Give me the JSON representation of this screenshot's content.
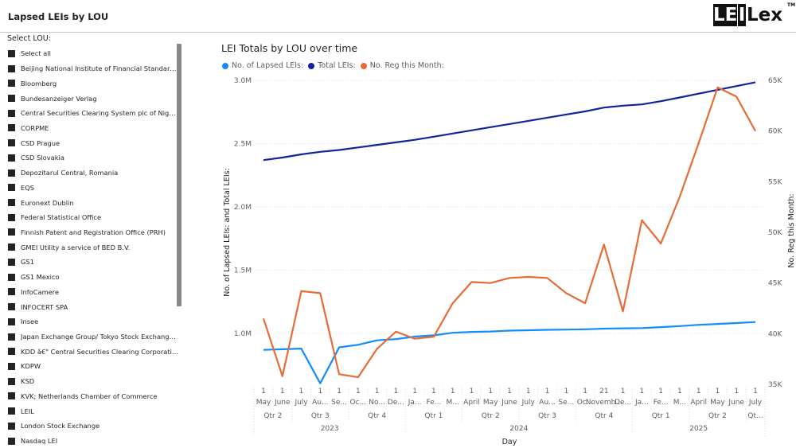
{
  "header": {
    "title": "Lapsed LEIs by LOU",
    "logo_left": "LE",
    "logo_mid": "I",
    "logo_right": "Lex",
    "logo_tm": "TM"
  },
  "slicer": {
    "title": "Select LOU:",
    "items": [
      "Select all",
      "Beijing National Institute of Financial Standardizatio...",
      "Bloomberg",
      "Bundesanzeiger Verlag",
      "Central Securities Clearing System plc of Nigeria",
      "CORPME",
      "CSD Prague",
      "CSD Slovakia",
      "Depozitarul Central, Romania",
      "EQS",
      "Euronext Dublin",
      "Federal Statistical Office",
      "Finnish Patent and Registration Office (PRH)",
      "GMEI Utility a service of BED B.V.",
      "GS1",
      "GS1 Mexico",
      "InfoCamere",
      "INFOCERT SPA",
      "Insee",
      "Japan Exchange Group/ Tokyo Stock Exchange (JPX/...",
      "KDD â€\" Central Securities Clearing Corporation, LLC",
      "KDPW",
      "KSD",
      "KVK; Netherlands Chamber of Commerce",
      "LEIL",
      "London Stock Exchange",
      "Nasdaq LEI"
    ]
  },
  "colors": {
    "lapsed": "#118DFF",
    "total": "#12239E",
    "reg": "#E66C37",
    "grid": "#e1dfdd",
    "text": "#605e5c"
  },
  "chart_data": {
    "type": "line",
    "title": "LEI Totals by LOU over time",
    "xlabel": "Day",
    "ylabel": "No. of Lapsed LEIs: and Total LEIs:",
    "y2label": "No. Reg this Month:",
    "ylim": [
      700000,
      3100000
    ],
    "y2lim": [
      35000,
      66000
    ],
    "yticks": [
      1000000,
      1500000,
      2000000,
      2500000,
      3000000
    ],
    "ytick_labels": [
      "1.0M",
      "1.5M",
      "2.0M",
      "2.5M",
      "3.0M"
    ],
    "y2ticks": [
      35000,
      40000,
      45000,
      50000,
      55000,
      60000,
      65000
    ],
    "y2tick_labels": [
      "35K",
      "40K",
      "45K",
      "50K",
      "55K",
      "60K",
      "65K"
    ],
    "x_days": [
      "1",
      "1",
      "1",
      "1",
      "1",
      "1",
      "1",
      "1",
      "1",
      "1",
      "1",
      "1",
      "1",
      "1",
      "1",
      "1",
      "1",
      "1",
      "21",
      "1",
      "1",
      "1",
      "1",
      "1",
      "1",
      "1",
      "1"
    ],
    "x_months": [
      "May",
      "June",
      "July",
      "Au...",
      "Se...",
      "Oc...",
      "No...",
      "De...",
      "Ja...",
      "Fe...",
      "M...",
      "April",
      "May",
      "June",
      "July",
      "Au...",
      "Se...",
      "Oc...",
      "Novemb...",
      "De...",
      "Ja...",
      "Fe...",
      "M...",
      "April",
      "May",
      "June",
      "July"
    ],
    "quarters": [
      {
        "label": "Qtr 2",
        "span": [
          0,
          1
        ]
      },
      {
        "label": "Qtr 3",
        "span": [
          2,
          4
        ]
      },
      {
        "label": "Qtr 4",
        "span": [
          5,
          7
        ]
      },
      {
        "label": "Qtr 1",
        "span": [
          8,
          10
        ]
      },
      {
        "label": "Qtr 2",
        "span": [
          11,
          13
        ]
      },
      {
        "label": "Qtr 3",
        "span": [
          14,
          16
        ]
      },
      {
        "label": "Qtr 4",
        "span": [
          17,
          19
        ]
      },
      {
        "label": "Qtr 1",
        "span": [
          20,
          22
        ]
      },
      {
        "label": "Qtr 2",
        "span": [
          23,
          25
        ]
      },
      {
        "label": "Qt...",
        "span": [
          26,
          26
        ]
      }
    ],
    "years": [
      {
        "label": "2023",
        "span": [
          0,
          7
        ]
      },
      {
        "label": "2024",
        "span": [
          8,
          19
        ]
      },
      {
        "label": "2025",
        "span": [
          20,
          26
        ]
      }
    ],
    "series": [
      {
        "name": "No. of Lapsed LEIs:",
        "axis": "left",
        "values": [
          870000,
          875000,
          880000,
          605000,
          890000,
          910000,
          945000,
          955000,
          975000,
          985000,
          1005000,
          1012000,
          1015000,
          1022000,
          1025000,
          1028000,
          1030000,
          1033000,
          1038000,
          1040000,
          1042000,
          1050000,
          1058000,
          1068000,
          1075000,
          1082000,
          1090000
        ]
      },
      {
        "name": "Total LEIs:",
        "axis": "left",
        "values": [
          2370000,
          2390000,
          2415000,
          2435000,
          2450000,
          2470000,
          2490000,
          2510000,
          2530000,
          2555000,
          2580000,
          2605000,
          2630000,
          2655000,
          2680000,
          2705000,
          2730000,
          2755000,
          2785000,
          2800000,
          2810000,
          2835000,
          2865000,
          2895000,
          2925000,
          2955000,
          2985000
        ]
      },
      {
        "name": "No. Reg this Month:",
        "axis": "right",
        "values": [
          41500,
          35800,
          44200,
          44000,
          36000,
          35700,
          38500,
          40200,
          39500,
          39700,
          43000,
          45100,
          45000,
          45500,
          45600,
          45500,
          44000,
          43000,
          48800,
          42200,
          51200,
          48900,
          53500,
          58800,
          64300,
          63400,
          60000
        ]
      }
    ]
  }
}
